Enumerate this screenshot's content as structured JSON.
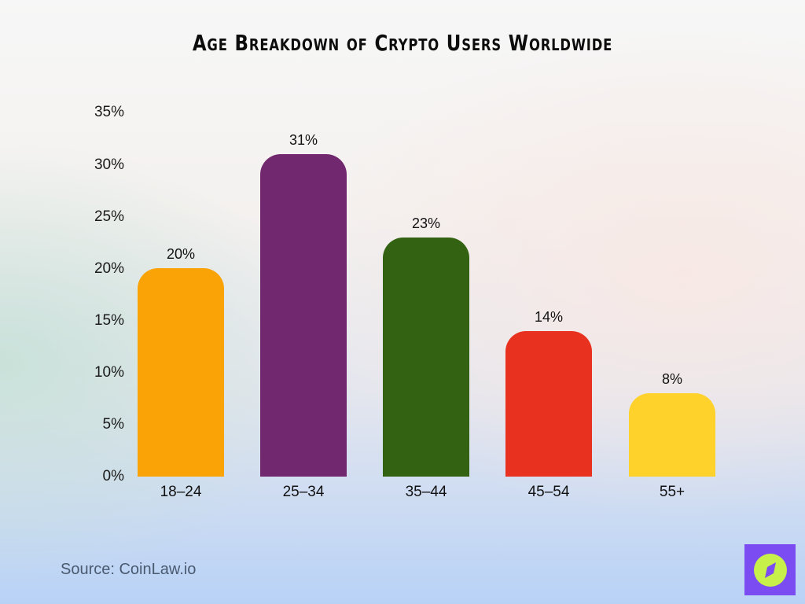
{
  "title": "Age Breakdown of Crypto Users Worldwide",
  "source": "Source: CoinLaw.io",
  "logo": {
    "icon": "compass-icon",
    "bg_color": "#7a4cf2",
    "circle_color": "#c7f04a"
  },
  "y_ticks": [
    "0%",
    "5%",
    "10%",
    "15%",
    "20%",
    "25%",
    "30%",
    "35%"
  ],
  "bars": [
    {
      "category": "18–24",
      "value": 20,
      "label": "20%",
      "color": "#f9a307"
    },
    {
      "category": "25–34",
      "value": 31,
      "label": "31%",
      "color": "#72286f"
    },
    {
      "category": "35–44",
      "value": 23,
      "label": "23%",
      "color": "#336312"
    },
    {
      "category": "45–54",
      "value": 14,
      "label": "14%",
      "color": "#e8321f"
    },
    {
      "category": "55+",
      "value": 8,
      "label": "8%",
      "color": "#fed12b"
    }
  ],
  "chart_data": {
    "type": "bar",
    "title": "Age Breakdown of Crypto Users Worldwide",
    "categories": [
      "18–24",
      "25–34",
      "35–44",
      "45–54",
      "55+"
    ],
    "values": [
      20,
      31,
      23,
      14,
      8
    ],
    "xlabel": "",
    "ylabel": "",
    "ylim": [
      0,
      35
    ],
    "y_ticks": [
      0,
      5,
      10,
      15,
      20,
      25,
      30,
      35
    ],
    "y_tick_format": "%",
    "grid": false,
    "legend": null,
    "data_labels": [
      "20%",
      "31%",
      "23%",
      "14%",
      "8%"
    ],
    "colors": [
      "#f9a307",
      "#72286f",
      "#336312",
      "#e8321f",
      "#fed12b"
    ],
    "annotations": [
      "Source: CoinLaw.io"
    ]
  }
}
